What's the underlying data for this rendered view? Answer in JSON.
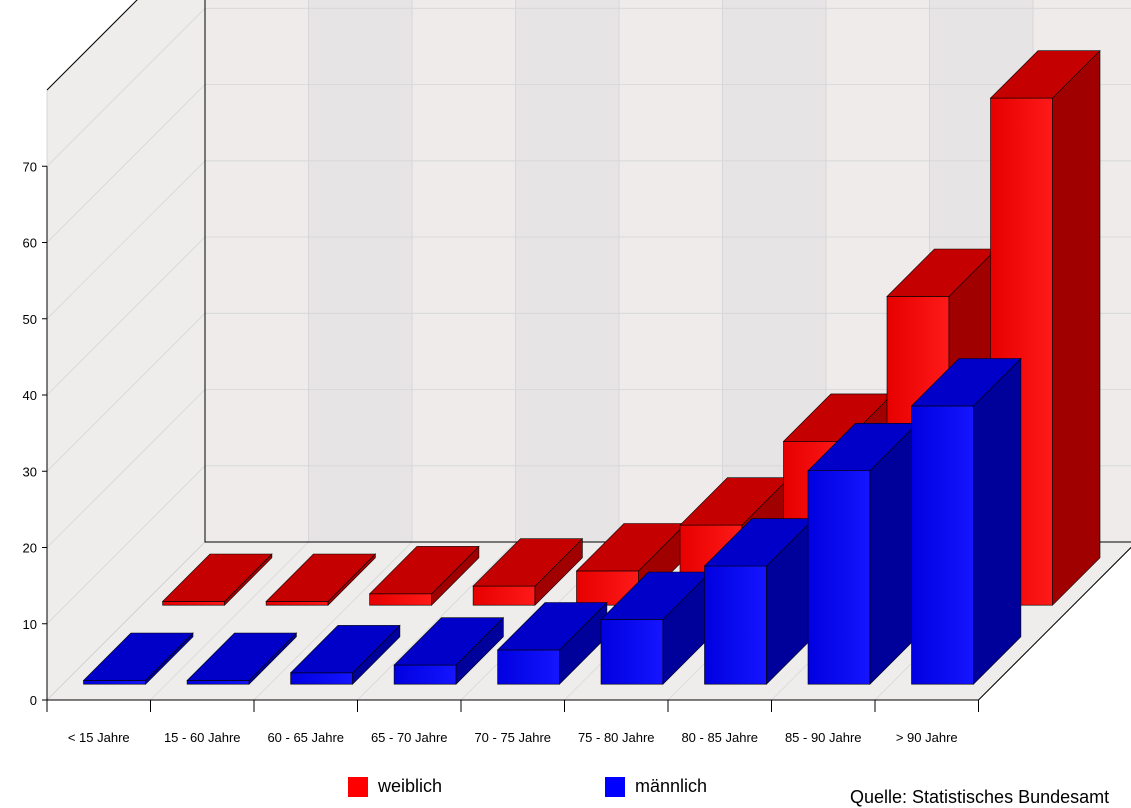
{
  "chart_data": {
    "type": "bar",
    "categories": [
      "< 15 Jahre",
      "15 - 60 Jahre",
      "60 - 65 Jahre",
      "65 - 70 Jahre",
      "70 - 75 Jahre",
      "75 - 80 Jahre",
      "80 - 85 Jahre",
      "85 - 90 Jahre",
      "> 90 Jahre"
    ],
    "series": [
      {
        "name": "weiblich",
        "color": "#ff0000",
        "values": [
          0.5,
          0.5,
          1.5,
          2.5,
          4.5,
          10.5,
          21.5,
          40.5,
          66.5
        ]
      },
      {
        "name": "männlich",
        "color": "#0000ff",
        "values": [
          0.5,
          0.5,
          1.5,
          2.5,
          4.5,
          8.5,
          15.5,
          28,
          36.5
        ]
      }
    ],
    "yticks": [
      "0",
      "10",
      "20",
      "30",
      "40",
      "50",
      "60",
      "70"
    ],
    "ylim": [
      0,
      80
    ],
    "grid": true,
    "view": "3d",
    "legend_position": "bottom"
  },
  "legend": {
    "items": [
      "weiblich",
      "männlich"
    ]
  },
  "source_text": "Quelle: Statistisches Bundesamt"
}
